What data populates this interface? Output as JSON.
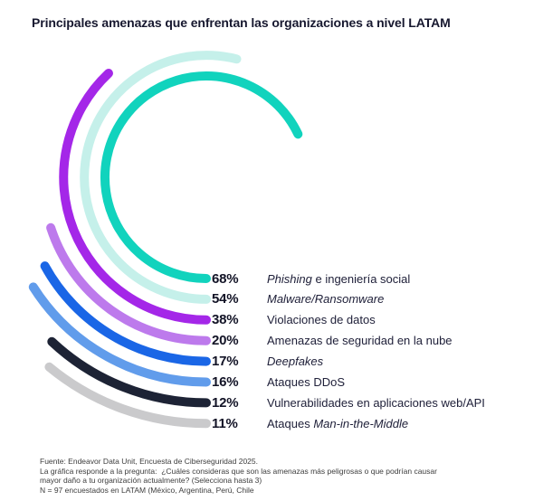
{
  "title": "Principales amenazas que enfrentan las organizaciones a nivel LATAM",
  "chart_data": {
    "type": "radial-bar",
    "title": "Principales amenazas que enfrentan las organizaciones a nivel LATAM",
    "unit": "%",
    "max_value": 100,
    "start_angle_deg": 90,
    "direction": "clockwise",
    "legend_position": "right-inside",
    "categories": [
      "Phishing e ingeniería social",
      "Malware/Ransomware",
      "Violaciones de datos",
      "Amenazas de seguridad en la nube",
      "Deepfakes",
      "Ataques DDoS",
      "Vulnerabilidades en aplicaciones web/API",
      "Ataques Man-in-the-Middle"
    ],
    "values": [
      68,
      54,
      38,
      20,
      17,
      16,
      12,
      11
    ],
    "value_labels": [
      "68%",
      "54%",
      "38%",
      "20%",
      "17%",
      "16%",
      "12%",
      "11%"
    ],
    "series": [
      {
        "name": "Phishing e ingeniería social",
        "value": 68,
        "value_label": "68%",
        "color": "#11d3bd",
        "label_segments": [
          {
            "text": "Phishing",
            "italic": true
          },
          {
            "text": " e ingeniería social",
            "italic": false
          }
        ]
      },
      {
        "name": "Malware/Ransomware",
        "value": 54,
        "value_label": "54%",
        "color": "#c5f0ea",
        "label_segments": [
          {
            "text": "Malware/Ransomware",
            "italic": true
          }
        ]
      },
      {
        "name": "Violaciones de datos",
        "value": 38,
        "value_label": "38%",
        "color": "#a427e8",
        "label_segments": [
          {
            "text": "Violaciones de datos",
            "italic": false
          }
        ]
      },
      {
        "name": "Amenazas de seguridad en la nube",
        "value": 20,
        "value_label": "20%",
        "color": "#bd7aec",
        "label_segments": [
          {
            "text": "Amenazas de seguridad en la nube",
            "italic": false
          }
        ]
      },
      {
        "name": "Deepfakes",
        "value": 17,
        "value_label": "17%",
        "color": "#1a66e6",
        "label_segments": [
          {
            "text": "Deepfakes",
            "italic": true
          }
        ]
      },
      {
        "name": "Ataques DDoS",
        "value": 16,
        "value_label": "16%",
        "color": "#619ceb",
        "label_segments": [
          {
            "text": "Ataques DDoS",
            "italic": false
          }
        ]
      },
      {
        "name": "Vulnerabilidades en aplicaciones web/API",
        "value": 12,
        "value_label": "12%",
        "color": "#1d2335",
        "label_segments": [
          {
            "text": "Vulnerabilidades en aplicaciones web/API",
            "italic": false
          }
        ]
      },
      {
        "name": "Ataques Man-in-the-Middle",
        "value": 11,
        "value_label": "11%",
        "color": "#cacacc",
        "label_segments": [
          {
            "text": "Ataques ",
            "italic": false
          },
          {
            "text": "Man-in-the-Middle",
            "italic": true
          }
        ]
      }
    ]
  },
  "footnote": {
    "lines": [
      "Fuente: Endeavor Data Unit, Encuesta de Ciberseguridad 2025.",
      "La gráfica responde a la pregunta:  ¿Cuáles consideras que son las amenazas más peligrosas o que podrían causar",
      "mayor daño a tu organización actualmente? (Selecciona hasta 3)",
      "N = 97 encuestados en LATAM (México, Argentina, Perú, Chile"
    ]
  },
  "colors": {
    "background": "#ffffff",
    "title_text": "#17182f",
    "legend_value_text": "#121326",
    "legend_label_text": "#20213a",
    "footnote_text": "#3d3d3d"
  }
}
